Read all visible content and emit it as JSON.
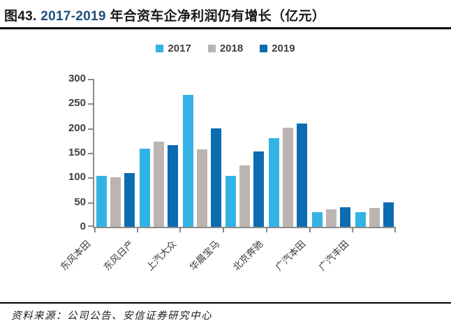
{
  "title": {
    "part1": "图43.",
    "part2": " 2017-2019 ",
    "part3": "年合资车企净利润仍有增长（亿元）"
  },
  "colors": {
    "title_number": "#1F4E79",
    "axis": "#8A8A8A",
    "tick_label": "#3F3F3F",
    "series_2017": "#33B3E4",
    "series_2018": "#BBB4B1",
    "series_2019": "#0C6CB2"
  },
  "legend": {
    "items": [
      "2017",
      "2018",
      "2019"
    ]
  },
  "footer": {
    "source_text": "资料来源：公司公告、安信证券研究中心"
  },
  "chart_data": {
    "type": "bar",
    "title": "图43. 2017-2019 年合资车企净利润仍有增长（亿元）",
    "unit": "亿元",
    "categories": [
      "东风本田",
      "东风日产",
      "上汽大众",
      "华晨宝马",
      "北京奔驰",
      "广汽本田",
      "广汽丰田"
    ],
    "series": [
      {
        "name": "2017",
        "color": "#33B3E4",
        "values": [
          103,
          158,
          267,
          104,
          180,
          30,
          30
        ]
      },
      {
        "name": "2018",
        "color": "#BBB4B1",
        "values": [
          101,
          173,
          157,
          125,
          201,
          35,
          38
        ]
      },
      {
        "name": "2019",
        "color": "#0C6CB2",
        "values": [
          109,
          166,
          200,
          153,
          210,
          40,
          49
        ]
      }
    ],
    "xlabel": "",
    "ylabel": "",
    "ylim": [
      0,
      300
    ],
    "ytick_step": 50,
    "grid": false,
    "legend_position": "top"
  }
}
